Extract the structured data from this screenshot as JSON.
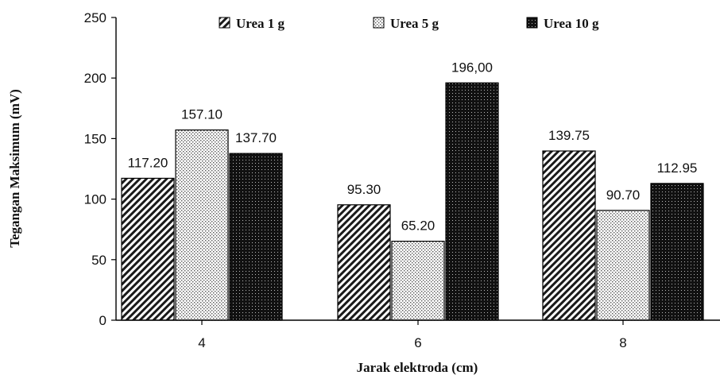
{
  "chart_data": {
    "type": "bar",
    "categories": [
      "4",
      "6",
      "8"
    ],
    "series": [
      {
        "name": "Urea 1 g",
        "values": [
          117.2,
          95.3,
          139.75
        ],
        "labels": [
          "117.20",
          "95.30",
          "139.75"
        ],
        "pattern": "diagonal-hatch"
      },
      {
        "name": "Urea 5 g",
        "values": [
          157.1,
          65.2,
          90.7
        ],
        "labels": [
          "157.10",
          "65.20",
          "90.70"
        ],
        "pattern": "dotted"
      },
      {
        "name": "Urea 10 g",
        "values": [
          137.7,
          196.0,
          112.95
        ],
        "labels": [
          "137.70",
          "196,00",
          "112.95"
        ],
        "pattern": "dense-dark"
      }
    ],
    "xlabel": "Jarak elektroda (cm)",
    "ylabel": "Tegangan Maksimum (mV)",
    "ylim": [
      0,
      250
    ],
    "yticks": [
      "0",
      "50",
      "100",
      "150",
      "200",
      "250"
    ],
    "grid": false,
    "legend_position": "top"
  }
}
